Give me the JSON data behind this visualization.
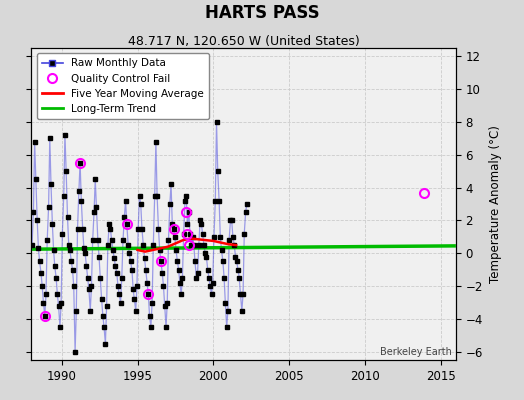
{
  "title": "HARTS PASS",
  "subtitle": "48.717 N, 120.650 W (United States)",
  "ylabel": "Temperature Anomaly (°C)",
  "credit": "Berkeley Earth",
  "xlim": [
    1988,
    2016
  ],
  "ylim": [
    -6.5,
    12.5
  ],
  "yticks": [
    -6,
    -4,
    -2,
    0,
    2,
    4,
    6,
    8,
    10,
    12
  ],
  "xticks": [
    1990,
    1995,
    2000,
    2005,
    2010,
    2015
  ],
  "background_color": "#d8d8d8",
  "plot_background": "#f0f0f0",
  "long_term_trend_y": 0.3,
  "colors": {
    "raw_line": "#4444dd",
    "raw_line_alpha": 0.5,
    "raw_marker": "#000000",
    "qc_fail": "#ff00ff",
    "moving_avg": "#ff0000",
    "long_term": "#00bb00",
    "grid": "#cccccc"
  },
  "raw_times": [
    1988.04,
    1988.13,
    1988.21,
    1988.29,
    1988.38,
    1988.46,
    1988.54,
    1988.63,
    1988.71,
    1988.79,
    1988.88,
    1988.96,
    1989.04,
    1989.13,
    1989.21,
    1989.29,
    1989.38,
    1989.46,
    1989.54,
    1989.63,
    1989.71,
    1989.79,
    1989.88,
    1989.96,
    1990.04,
    1990.13,
    1990.21,
    1990.29,
    1990.38,
    1990.46,
    1990.54,
    1990.63,
    1990.71,
    1990.79,
    1990.88,
    1990.96,
    1991.04,
    1991.13,
    1991.21,
    1991.29,
    1991.38,
    1991.46,
    1991.54,
    1991.63,
    1991.71,
    1991.79,
    1991.88,
    1991.96,
    1992.04,
    1992.13,
    1992.21,
    1992.29,
    1992.38,
    1992.46,
    1992.54,
    1992.63,
    1992.71,
    1992.79,
    1992.88,
    1992.96,
    1993.04,
    1993.13,
    1993.21,
    1993.29,
    1993.38,
    1993.46,
    1993.54,
    1993.63,
    1993.71,
    1993.79,
    1993.88,
    1993.96,
    1994.04,
    1994.13,
    1994.21,
    1994.29,
    1994.38,
    1994.46,
    1994.54,
    1994.63,
    1994.71,
    1994.79,
    1994.88,
    1994.96,
    1995.04,
    1995.13,
    1995.21,
    1995.29,
    1995.38,
    1995.46,
    1995.54,
    1995.63,
    1995.71,
    1995.79,
    1995.88,
    1995.96,
    1996.04,
    1996.13,
    1996.21,
    1996.29,
    1996.38,
    1996.46,
    1996.54,
    1996.63,
    1996.71,
    1996.79,
    1996.88,
    1996.96,
    1997.04,
    1997.13,
    1997.21,
    1997.29,
    1997.38,
    1997.46,
    1997.54,
    1997.63,
    1997.71,
    1997.79,
    1997.88,
    1997.96,
    1998.04,
    1998.13,
    1998.21,
    1998.29,
    1998.38,
    1998.46,
    1998.54,
    1998.63,
    1998.71,
    1998.79,
    1998.88,
    1998.96,
    1999.04,
    1999.13,
    1999.21,
    1999.29,
    1999.38,
    1999.46,
    1999.54,
    1999.63,
    1999.71,
    1999.79,
    1999.88,
    1999.96,
    2000.04,
    2000.13,
    2000.21,
    2000.29,
    2000.38,
    2000.46,
    2000.54,
    2000.63,
    2000.71,
    2000.79,
    2000.88,
    2000.96,
    2001.04,
    2001.13,
    2001.21,
    2001.29,
    2001.38,
    2001.46,
    2001.54,
    2001.63,
    2001.71,
    2001.79,
    2001.88,
    2001.96,
    2002.04,
    2002.13,
    2002.21
  ],
  "raw_values": [
    0.5,
    2.5,
    6.8,
    4.5,
    2.0,
    0.3,
    -0.5,
    -1.2,
    -2.0,
    -3.0,
    -3.8,
    -2.5,
    0.8,
    2.8,
    7.0,
    4.2,
    1.8,
    0.2,
    -0.8,
    -1.5,
    -2.5,
    -3.2,
    -4.5,
    -3.0,
    1.2,
    3.5,
    7.2,
    5.0,
    2.2,
    0.5,
    0.2,
    -0.5,
    -1.0,
    -2.0,
    -6.0,
    -3.5,
    1.5,
    3.8,
    5.5,
    3.2,
    1.5,
    0.3,
    0.0,
    -0.8,
    -1.5,
    -2.2,
    -3.5,
    -2.0,
    0.8,
    2.5,
    4.5,
    2.8,
    0.8,
    -0.2,
    -1.5,
    -2.8,
    -3.8,
    -4.5,
    -5.5,
    -3.2,
    0.5,
    1.8,
    1.5,
    0.8,
    0.2,
    -0.3,
    -0.8,
    -1.2,
    -2.0,
    -2.5,
    -3.0,
    -1.5,
    0.8,
    2.2,
    3.2,
    1.8,
    0.5,
    0.0,
    -0.5,
    -1.0,
    -2.2,
    -2.8,
    -3.5,
    -2.0,
    1.5,
    3.5,
    3.0,
    1.5,
    0.5,
    -0.3,
    -1.0,
    -1.8,
    -2.5,
    -3.8,
    -4.5,
    -3.0,
    0.5,
    3.5,
    6.8,
    3.5,
    1.5,
    0.2,
    -0.5,
    -1.2,
    -2.0,
    -3.2,
    -4.5,
    -3.0,
    0.8,
    3.0,
    4.2,
    1.8,
    1.5,
    1.0,
    0.2,
    -0.5,
    -1.0,
    -1.8,
    -2.5,
    -1.5,
    1.2,
    3.2,
    3.5,
    1.8,
    2.5,
    1.2,
    0.5,
    1.0,
    0.5,
    -0.5,
    -1.5,
    -1.2,
    0.5,
    2.0,
    1.8,
    1.2,
    0.5,
    0.0,
    -0.2,
    -1.0,
    -1.5,
    -2.0,
    -2.5,
    -1.8,
    1.0,
    3.2,
    8.0,
    5.0,
    3.2,
    1.0,
    0.2,
    -0.5,
    -1.5,
    -3.0,
    -4.5,
    -3.5,
    0.8,
    2.0,
    2.0,
    1.0,
    0.5,
    -0.2,
    -0.5,
    -1.0,
    -1.5,
    -2.5,
    -3.5,
    -2.5,
    1.2,
    2.5,
    3.0
  ],
  "qc_fail_times": [
    1988.88,
    1991.21,
    1994.29,
    1995.71,
    1996.54,
    1997.38,
    1998.21,
    1998.29,
    1998.38,
    2013.88
  ],
  "qc_fail_values": [
    -3.8,
    5.5,
    1.8,
    -2.5,
    -0.5,
    1.5,
    2.5,
    1.2,
    0.5,
    3.7
  ],
  "moving_avg_times": [
    1995.0,
    1995.5,
    1996.0,
    1996.5,
    1997.0,
    1997.5,
    1998.0,
    1998.5,
    1999.0,
    1999.5,
    2000.0,
    2000.5,
    2001.0,
    2001.5
  ],
  "moving_avg_values": [
    0.2,
    0.1,
    0.2,
    0.3,
    0.4,
    0.6,
    0.8,
    0.9,
    0.85,
    0.8,
    0.75,
    0.65,
    0.55,
    0.5
  ]
}
